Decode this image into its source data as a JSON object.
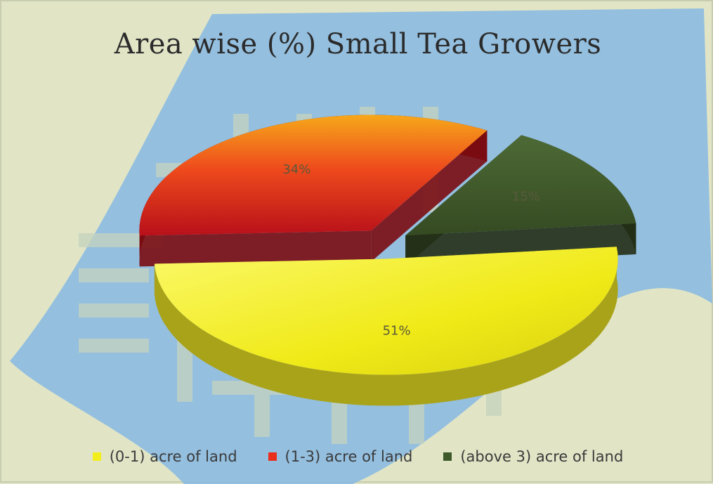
{
  "chart_data": {
    "type": "pie",
    "title": "Area wise (%) Small Tea Growers",
    "categories": [
      "(0-1) acre of land",
      "(1-3) acre of land",
      "(above 3) acre of land"
    ],
    "values": [
      51,
      34,
      15
    ],
    "labels": [
      "51%",
      "34%",
      "15%"
    ],
    "colors": [
      "#f2ee1e",
      "#e8301c",
      "#3f5a2a"
    ],
    "style": "3d-exploded",
    "legend_position": "bottom"
  }
}
